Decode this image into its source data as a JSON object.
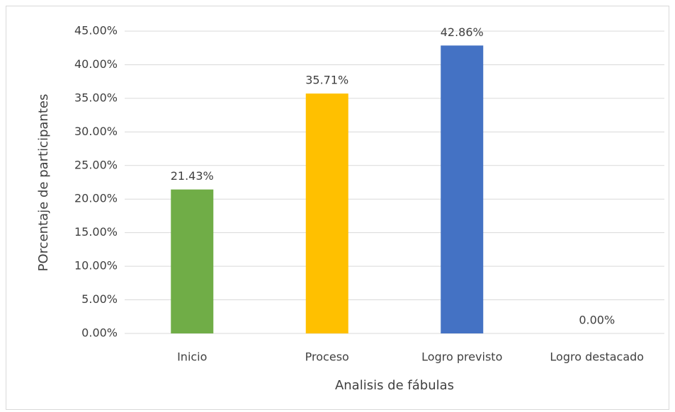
{
  "chart_data": {
    "type": "bar",
    "x_label": "Analisis de fábulas",
    "y_label": "POrcentaje de participantes",
    "categories": [
      "Inicio",
      "Proceso",
      "Logro previsto",
      "Logro destacado"
    ],
    "values": [
      21.43,
      35.71,
      42.86,
      0
    ],
    "value_labels": [
      "21.43%",
      "35.71%",
      "42.86%",
      "0.00%"
    ],
    "colors": [
      "#70ad47",
      "#ffc000",
      "#4472c4",
      "#a5a5a5"
    ],
    "ylim": [
      0,
      45
    ],
    "yticks": [
      {
        "value": 0,
        "label": "0.00%"
      },
      {
        "value": 5,
        "label": "5.00%"
      },
      {
        "value": 10,
        "label": "10.00%"
      },
      {
        "value": 15,
        "label": "15.00%"
      },
      {
        "value": 20,
        "label": "20.00%"
      },
      {
        "value": 25,
        "label": "25.00%"
      },
      {
        "value": 30,
        "label": "30.00%"
      },
      {
        "value": 35,
        "label": "35.00%"
      },
      {
        "value": 40,
        "label": "40.00%"
      },
      {
        "value": 45,
        "label": "45.00%"
      }
    ],
    "grid": true
  }
}
